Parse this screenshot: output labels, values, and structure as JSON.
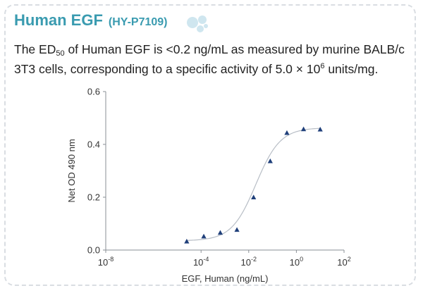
{
  "header": {
    "title": "Human EGF",
    "catalog": "(HY-P7109)",
    "logo_icon": "bubbles-logo-icon"
  },
  "description": {
    "part1": "The ED",
    "ed_sub": "50",
    "part2": " of Human EGF is <0.2 ng/mL as measured by murine BALB/c 3T3 cells, corresponding to a specific activity of 5.0 × 10",
    "exp_sup": "6",
    "part3": " units/mg."
  },
  "colors": {
    "title": "#3a9bb0",
    "marker": "#1f3f7a",
    "curve": "#b8bec6",
    "axis": "#8a8f95",
    "card_border": "#d9dde2"
  },
  "chart_data": {
    "type": "scatter",
    "xscale": "log",
    "xlim": [
      1e-08,
      100
    ],
    "ylim": [
      0.0,
      0.6
    ],
    "xlabel": "EGF, Human (ng/mL)",
    "ylabel": "Net OD 490 nm",
    "x_ticks": [
      {
        "base": "10",
        "exp": "-8"
      },
      {
        "base": "10",
        "exp": "-4"
      },
      {
        "base": "10",
        "exp": "-2"
      },
      {
        "base": "10",
        "exp": "0"
      },
      {
        "base": "10",
        "exp": "2"
      }
    ],
    "y_ticks": [
      "0.0",
      "0.2",
      "0.4",
      "0.6"
    ],
    "points": [
      {
        "x": 2.5e-05,
        "y": 0.033
      },
      {
        "x": 0.00013,
        "y": 0.052
      },
      {
        "x": 0.00064,
        "y": 0.066
      },
      {
        "x": 0.0032,
        "y": 0.077
      },
      {
        "x": 0.016,
        "y": 0.2
      },
      {
        "x": 0.08,
        "y": 0.337
      },
      {
        "x": 0.4,
        "y": 0.444
      },
      {
        "x": 2,
        "y": 0.458
      },
      {
        "x": 10,
        "y": 0.457
      }
    ],
    "fit_curve": true,
    "grid": false,
    "legend": "none"
  }
}
